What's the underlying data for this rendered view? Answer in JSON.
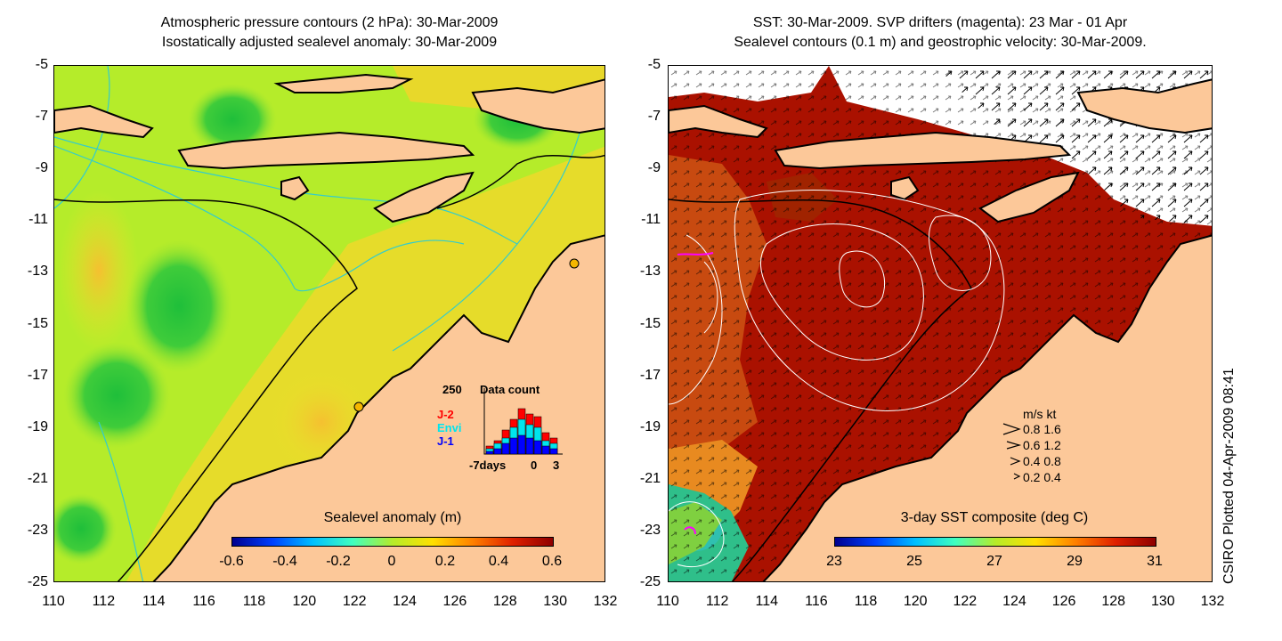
{
  "left": {
    "title_line1": "Atmospheric pressure contours (2 hPa): 30-Mar-2009",
    "title_line2": "Isostatically adjusted sealevel anomaly: 30-Mar-2009",
    "colorbar_label": "Sealevel anomaly (m)",
    "colorbar_ticks": [
      "-0.6",
      "-0.4",
      "-0.2",
      "0",
      "0.2",
      "0.4",
      "0.6"
    ],
    "data_count": {
      "label": "Data count",
      "max": "250",
      "x_ticks": [
        "-7days",
        "0",
        "3"
      ],
      "missions": [
        "J-2",
        "Envi",
        "J-1"
      ],
      "mission_colors": [
        "#ff0000",
        "#00e5ee",
        "#0000ff"
      ]
    }
  },
  "right": {
    "title_line1": "SST: 30-Mar-2009. SVP drifters (magenta): 23 Mar - 01 Apr",
    "title_line2": "Sealevel contours (0.1 m) and geostrophic velocity: 30-Mar-2009.",
    "colorbar_label": "3-day SST composite (deg C)",
    "colorbar_ticks": [
      "23",
      "25",
      "27",
      "29",
      "31"
    ],
    "velocity_legend": {
      "header": "m/s  kt",
      "rows": [
        "0.8  1.6",
        "0.6  1.2",
        "0.4  0.8",
        "0.2  0.4"
      ]
    }
  },
  "axes": {
    "y_ticks": [
      "-5",
      "-7",
      "-9",
      "-11",
      "-13",
      "-15",
      "-17",
      "-19",
      "-21",
      "-23",
      "-25"
    ],
    "x_ticks": [
      "110",
      "112",
      "114",
      "116",
      "118",
      "120",
      "122",
      "124",
      "126",
      "128",
      "130",
      "132"
    ]
  },
  "credit": "CSIRO Plotted 04-Apr-2009 08:41",
  "colors": {
    "land": "#fcc899",
    "sla_base": "#b5ec2a",
    "sst_base": "#aa1100",
    "contour_cyan": "#33cccc"
  }
}
